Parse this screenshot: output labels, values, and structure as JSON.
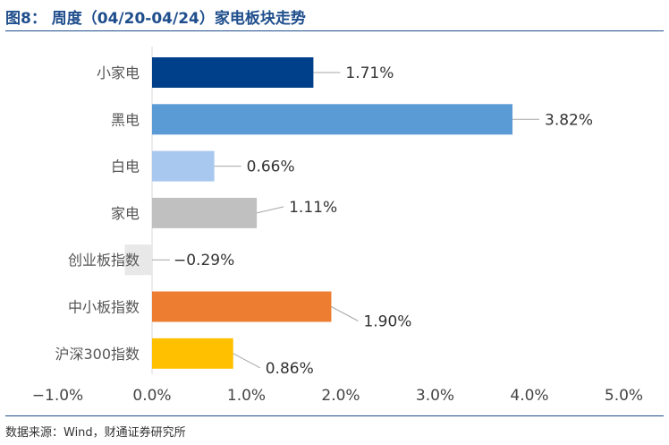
{
  "title": "图8： 周度（04/20-04/24）家电板块走势",
  "source": "数据来源：Wind，财通证券研究所",
  "chart_data": {
    "type": "bar",
    "orientation": "horizontal",
    "categories": [
      "小家电",
      "黑电",
      "白电",
      "家电",
      "创业板指数",
      "中小板指数",
      "沪深300指数"
    ],
    "values": [
      1.71,
      3.82,
      0.66,
      1.11,
      -0.29,
      1.9,
      0.86
    ],
    "value_labels": [
      "1.71%",
      "3.82%",
      "0.66%",
      "1.11%",
      "−0.29%",
      "1.90%",
      "0.86%"
    ],
    "colors": [
      "#003f8a",
      "#5b9bd5",
      "#a9c8f0",
      "#c0c0c0",
      "#e8e8e8",
      "#ed7d31",
      "#ffc000"
    ],
    "xlim": [
      -1.0,
      5.0
    ],
    "xticks": [
      -1.0,
      0.0,
      1.0,
      2.0,
      3.0,
      4.0,
      5.0
    ],
    "xtick_labels": [
      "−1.0%",
      "0.0%",
      "1.0%",
      "2.0%",
      "3.0%",
      "4.0%",
      "5.0%"
    ],
    "grid": false,
    "legend": "none",
    "label_style": "leader-line"
  }
}
